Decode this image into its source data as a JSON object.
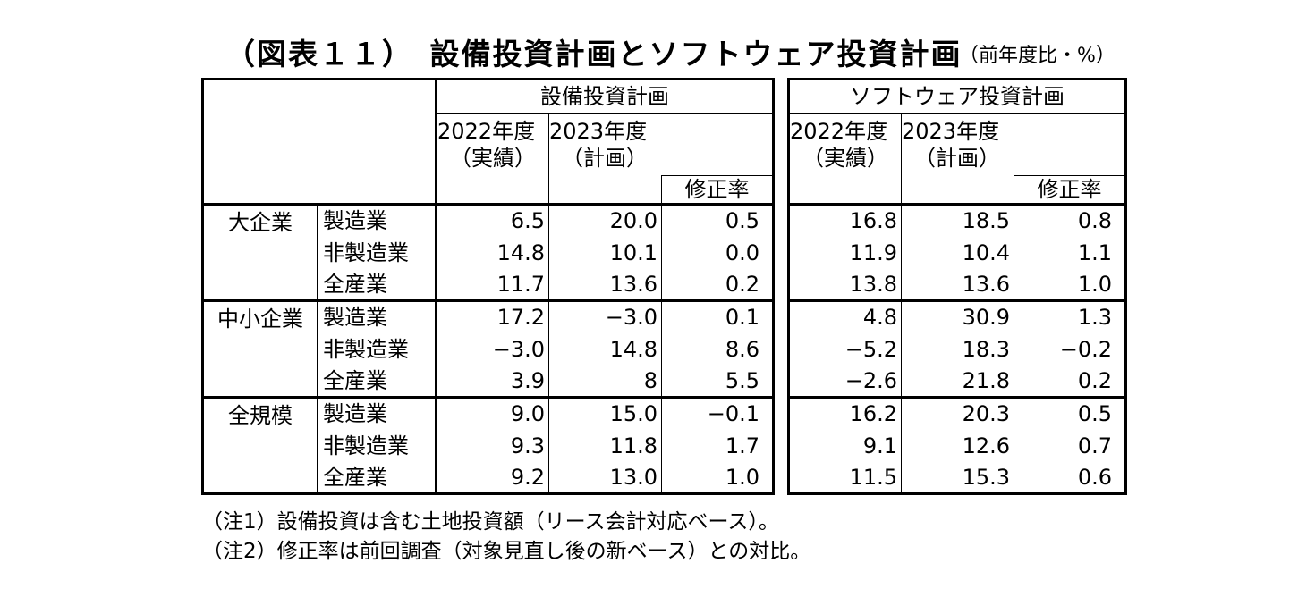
{
  "title": "（図表１１）　設備投資計画とソフトウェア投資計画",
  "unit": "（前年度比・%）",
  "header": {
    "group_left": "設備投資計画",
    "group_right": "ソフトウェア投資計画",
    "y2022_line1": "2022年度",
    "y2022_line2": "（実績）",
    "y2023_line1": "2023年度",
    "y2023_line2": "（計画）",
    "revision": "修正率"
  },
  "groups": [
    "大企業",
    "中小企業",
    "全規模"
  ],
  "industries": [
    "製造業",
    "非製造業",
    "全産業"
  ],
  "rows": [
    {
      "capex": [
        "6.5",
        "20.0",
        "0.5"
      ],
      "software": [
        "16.8",
        "18.5",
        "0.8"
      ]
    },
    {
      "capex": [
        "14.8",
        "10.1",
        "0.0"
      ],
      "software": [
        "11.9",
        "10.4",
        "1.1"
      ]
    },
    {
      "capex": [
        "11.7",
        "13.6",
        "0.2"
      ],
      "software": [
        "13.8",
        "13.6",
        "1.0"
      ]
    },
    {
      "capex": [
        "17.2",
        "−3.0",
        "0.1"
      ],
      "software": [
        "4.8",
        "30.9",
        "1.3"
      ]
    },
    {
      "capex": [
        "−3.0",
        "14.8",
        "8.6"
      ],
      "software": [
        "−5.2",
        "18.3",
        "−0.2"
      ]
    },
    {
      "capex": [
        "3.9",
        "8",
        "5.5"
      ],
      "software": [
        "−2.6",
        "21.8",
        "0.2"
      ]
    },
    {
      "capex": [
        "9.0",
        "15.0",
        "−0.1"
      ],
      "software": [
        "16.2",
        "20.3",
        "0.5"
      ]
    },
    {
      "capex": [
        "9.3",
        "11.8",
        "1.7"
      ],
      "software": [
        "9.1",
        "12.6",
        "0.7"
      ]
    },
    {
      "capex": [
        "9.2",
        "13.0",
        "1.0"
      ],
      "software": [
        "11.5",
        "15.3",
        "0.6"
      ]
    }
  ],
  "notes": [
    "（注1）設備投資は含む土地投資額（リース会計対応ベース）。",
    "（注2）修正率は前回調査（対象見直し後の新ベース）との対比。"
  ]
}
